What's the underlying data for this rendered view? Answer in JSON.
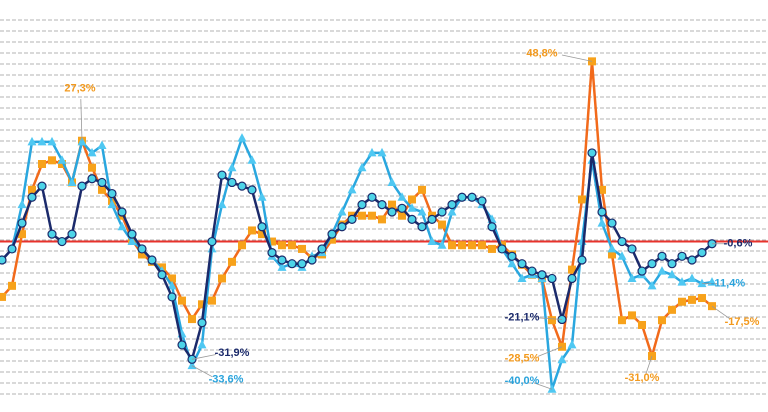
{
  "chart_data": {
    "type": "line",
    "categories": [
      null,
      null,
      null,
      null,
      null,
      null,
      null,
      null,
      null,
      null,
      null,
      null,
      null,
      null,
      null,
      null,
      null,
      null,
      null,
      null,
      null,
      null,
      null,
      null,
      null,
      null,
      null,
      null,
      null,
      null,
      null,
      null,
      null,
      null,
      null,
      null,
      null,
      null,
      null,
      null,
      null,
      null,
      null,
      null,
      null,
      null,
      null,
      null,
      null,
      null,
      null,
      null,
      null,
      null,
      null,
      null,
      null,
      null,
      null,
      null,
      null,
      null,
      null,
      null,
      null,
      null,
      null,
      null,
      null,
      null,
      null,
      null
    ],
    "series": [
      {
        "name": null,
        "color": "#f26a1b",
        "marker_color": "#f7a21b",
        "marker": "square",
        "values": [
          -15,
          -12,
          2,
          14,
          21,
          22,
          21,
          16,
          27.3,
          20,
          14,
          11,
          7,
          0.5,
          -3.5,
          -5.5,
          -7,
          -10,
          -16,
          -21,
          -17,
          -16,
          -10,
          -5.5,
          -1,
          3,
          2,
          0,
          -1,
          -1,
          -2,
          -4.5,
          -3.5,
          0.5,
          4.6,
          7,
          7,
          7,
          6,
          10,
          7,
          11.4,
          14,
          7,
          4.6,
          -1,
          -1,
          -1,
          -1,
          -2,
          -1,
          -3.5,
          -6.3,
          -9,
          -10,
          -21.3,
          -28.5,
          -7.6,
          11.4,
          48.8,
          14,
          -3.5,
          -21.3,
          -20,
          -22.6,
          -31,
          -21.3,
          -18.5,
          -16.3,
          -15.8,
          -15.3,
          -17.5
        ],
        "value_labels": [
          null,
          null,
          null,
          null,
          null,
          null,
          null,
          null,
          "27,3%",
          null,
          null,
          null,
          null,
          null,
          null,
          null,
          null,
          null,
          null,
          null,
          null,
          null,
          null,
          null,
          null,
          null,
          null,
          null,
          null,
          null,
          null,
          null,
          null,
          null,
          null,
          null,
          null,
          null,
          null,
          null,
          null,
          null,
          null,
          null,
          null,
          null,
          null,
          null,
          null,
          null,
          null,
          null,
          null,
          null,
          null,
          null,
          "-28,5%",
          null,
          null,
          "48,8%",
          null,
          null,
          null,
          null,
          null,
          "-31,0%",
          null,
          null,
          null,
          null,
          null,
          "-17,5%"
        ]
      },
      {
        "name": null,
        "color": "#2aa7df",
        "marker_color": "#4fc8f2",
        "marker": "triangle",
        "values": [
          -5,
          -2,
          10,
          27,
          27,
          27,
          22,
          16,
          27,
          24,
          26,
          10,
          4,
          0,
          -2,
          -5,
          -8,
          -12,
          -25,
          -33.6,
          -28,
          -2,
          10,
          20,
          28,
          22,
          12,
          -4,
          -7,
          -6,
          -7,
          -4,
          -3,
          2,
          8,
          14,
          20,
          24,
          24,
          16,
          12,
          9,
          8,
          0,
          -1,
          8,
          12,
          12,
          10,
          6,
          -2,
          -6,
          -10,
          -9,
          -10,
          -40,
          -32,
          -28,
          0,
          22,
          5,
          -2,
          -4,
          -10,
          -9,
          -12,
          -8,
          -9,
          -11,
          -10,
          -11.4,
          -11
        ],
        "value_labels": [
          null,
          null,
          null,
          null,
          null,
          null,
          null,
          null,
          null,
          null,
          null,
          null,
          null,
          null,
          null,
          null,
          null,
          null,
          null,
          "-33,6%",
          null,
          null,
          null,
          null,
          null,
          null,
          null,
          null,
          null,
          null,
          null,
          null,
          null,
          null,
          null,
          null,
          null,
          null,
          null,
          null,
          null,
          null,
          null,
          null,
          null,
          null,
          null,
          null,
          null,
          null,
          null,
          null,
          null,
          null,
          null,
          "-40,0%",
          null,
          null,
          null,
          null,
          null,
          null,
          null,
          null,
          null,
          null,
          null,
          null,
          null,
          null,
          "-11,4%",
          null
        ]
      },
      {
        "name": null,
        "color": "#1b2a6b",
        "marker_color": "#4dd4e8",
        "marker": "circle",
        "values": [
          -5,
          -2,
          5,
          12,
          15,
          2,
          0,
          2,
          15,
          17,
          16,
          13,
          8,
          2,
          -2,
          -5,
          -9,
          -15,
          -28,
          -31.9,
          -22,
          0,
          18,
          16,
          15,
          14,
          4,
          -3,
          -5,
          -6,
          -6,
          -5,
          -2,
          2,
          4,
          6,
          10,
          12,
          10,
          8,
          9,
          6,
          4,
          6,
          8,
          10,
          12,
          12,
          11,
          4,
          -2,
          -4,
          -6,
          -8,
          -9,
          -10,
          -21.1,
          -10,
          -5,
          24,
          8,
          5,
          0,
          -2,
          -8,
          -6,
          -4,
          -6,
          -4,
          -5,
          -3,
          -0.6
        ],
        "value_labels": [
          null,
          null,
          null,
          null,
          null,
          null,
          null,
          null,
          null,
          null,
          null,
          null,
          null,
          null,
          null,
          null,
          null,
          null,
          null,
          "-31,9%",
          null,
          null,
          null,
          null,
          null,
          null,
          null,
          null,
          null,
          null,
          null,
          null,
          null,
          null,
          null,
          null,
          null,
          null,
          null,
          null,
          null,
          null,
          null,
          null,
          null,
          null,
          null,
          null,
          null,
          null,
          null,
          null,
          null,
          null,
          null,
          null,
          "-21,1%",
          null,
          null,
          null,
          null,
          null,
          null,
          null,
          null,
          null,
          null,
          null,
          null,
          null,
          null,
          "-0,6%"
        ]
      }
    ],
    "ylim": [
      -44,
      60
    ],
    "grid": true,
    "zero_line_color": "#e8322b"
  }
}
